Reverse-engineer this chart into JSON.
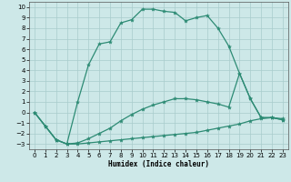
{
  "xlabel": "Humidex (Indice chaleur)",
  "x_values": [
    0,
    1,
    2,
    3,
    4,
    5,
    6,
    7,
    8,
    9,
    10,
    11,
    12,
    13,
    14,
    15,
    16,
    17,
    18,
    19,
    20,
    21,
    22,
    23
  ],
  "line_min": [
    0,
    -1.3,
    -2.6,
    -3.0,
    -3.0,
    -2.9,
    -2.8,
    -2.7,
    -2.6,
    -2.5,
    -2.4,
    -2.3,
    -2.2,
    -2.1,
    -2.0,
    -1.9,
    -1.7,
    -1.5,
    -1.3,
    -1.1,
    -0.8,
    -0.6,
    -0.5,
    -0.6
  ],
  "line_mid": [
    0,
    -1.3,
    -2.6,
    -3.0,
    -2.9,
    -2.5,
    -2.0,
    -1.5,
    -0.8,
    -0.2,
    0.3,
    0.7,
    1.0,
    1.3,
    1.3,
    1.2,
    1.0,
    0.8,
    0.5,
    3.7,
    1.3,
    -0.5,
    -0.5,
    -0.7
  ],
  "line_max": [
    0,
    -1.3,
    -2.6,
    -3.0,
    1.0,
    4.5,
    6.5,
    6.7,
    8.5,
    8.8,
    9.8,
    9.8,
    9.6,
    9.5,
    8.7,
    9.0,
    9.2,
    8.0,
    6.3,
    3.7,
    1.3,
    -0.5,
    -0.5,
    -0.7
  ],
  "color": "#2d8b74",
  "bg_color": "#cde8e8",
  "grid_color": "#a8cccc",
  "ylim": [
    -3.5,
    10.5
  ],
  "xlim": [
    -0.5,
    23.5
  ],
  "yticks": [
    -3,
    -2,
    -1,
    0,
    1,
    2,
    3,
    4,
    5,
    6,
    7,
    8,
    9,
    10
  ],
  "xticks": [
    0,
    1,
    2,
    3,
    4,
    5,
    6,
    7,
    8,
    9,
    10,
    11,
    12,
    13,
    14,
    15,
    16,
    17,
    18,
    19,
    20,
    21,
    22,
    23
  ]
}
